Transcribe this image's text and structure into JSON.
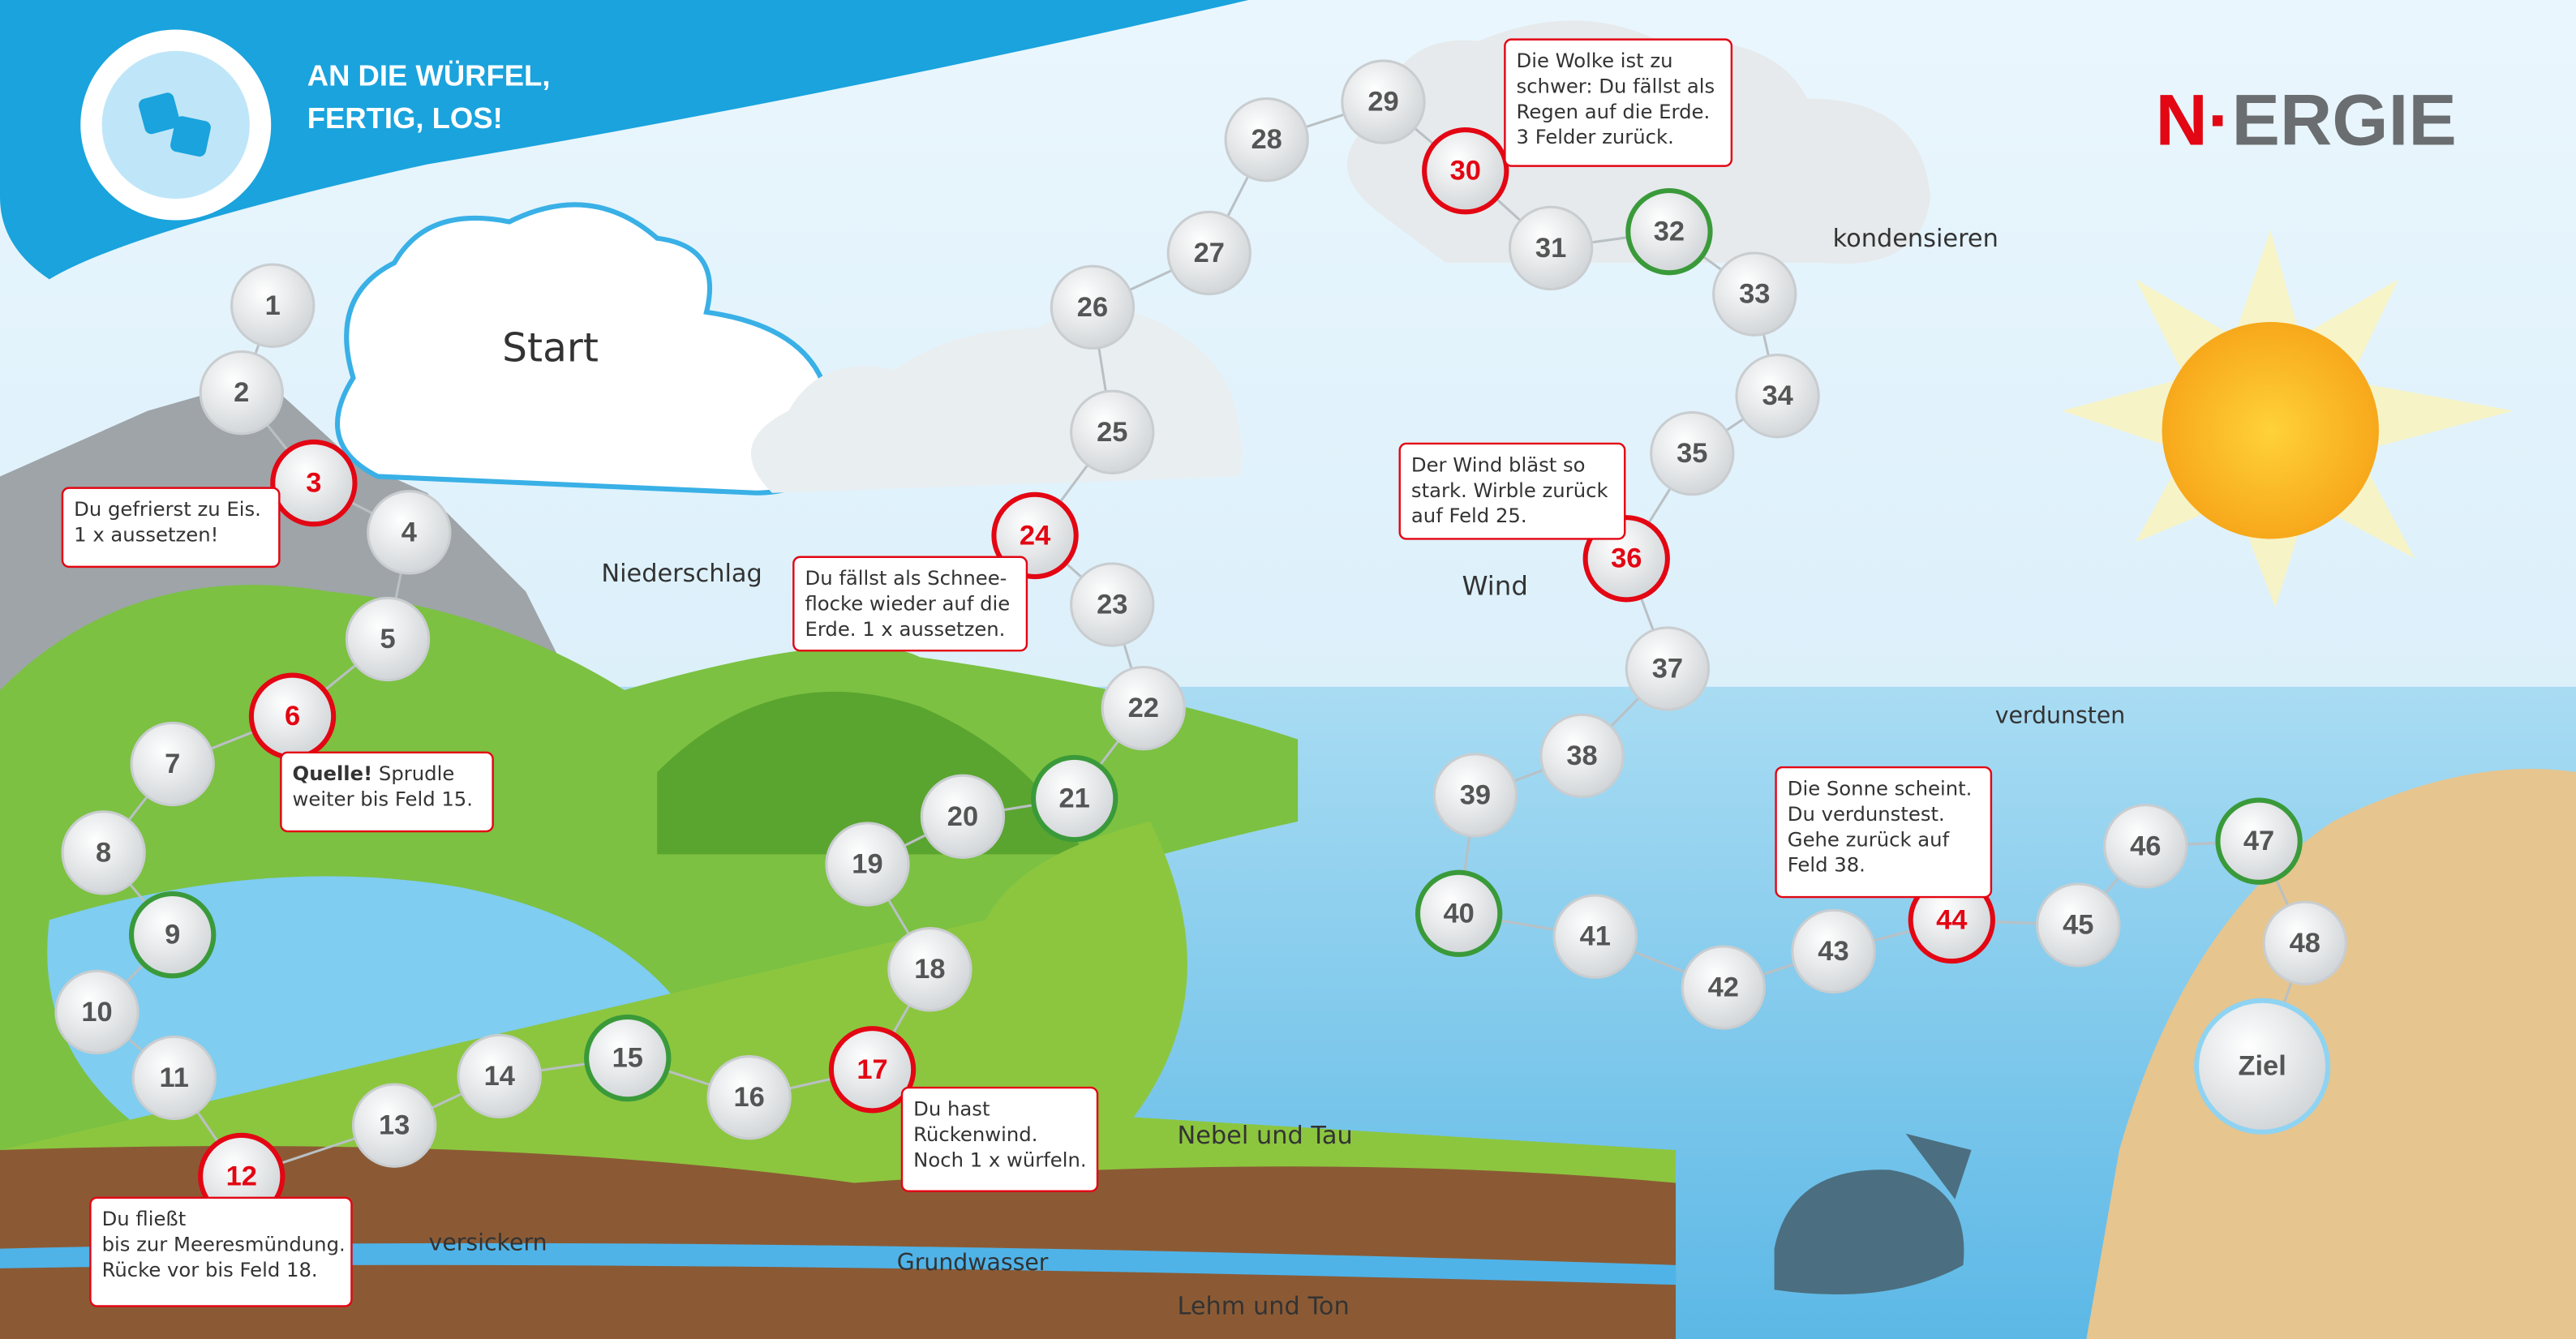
{
  "header": {
    "title_lines": [
      "AN DIE WÜRFEL,",
      "FERTIG, LOS!"
    ]
  },
  "logo": {
    "parts": [
      "N·",
      "ERGIE"
    ]
  },
  "fields": [
    {
      "number": 1
    },
    {
      "number": 2
    },
    {
      "number": 3,
      "color": "#e30613"
    },
    {
      "number": 4
    },
    {
      "number": 5
    },
    {
      "number": 6,
      "color": "#e30613"
    },
    {
      "number": 7
    },
    {
      "number": 8
    },
    {
      "number": 9,
      "color": "#3a9a3a"
    },
    {
      "number": 10
    },
    {
      "number": 11
    },
    {
      "number": 12,
      "color": "#e30613"
    },
    {
      "number": 13
    },
    {
      "number": 14
    },
    {
      "number": 15,
      "color": "#3a9a3a"
    },
    {
      "number": 16
    },
    {
      "number": 17,
      "color": "#e30613"
    },
    {
      "number": 18
    },
    {
      "number": 19
    },
    {
      "number": 20
    },
    {
      "number": 21,
      "color": "#3a9a3a"
    },
    {
      "number": 22
    },
    {
      "number": 23
    },
    {
      "number": 24,
      "color": "#e30613"
    },
    {
      "number": 25
    },
    {
      "number": 26
    },
    {
      "number": 27
    },
    {
      "number": 28
    },
    {
      "number": 29
    },
    {
      "number": 30,
      "color": "#e30613"
    },
    {
      "number": 31
    },
    {
      "number": 32,
      "color": "#3a9a3a"
    },
    {
      "number": 33
    },
    {
      "number": 34
    },
    {
      "number": 35
    },
    {
      "number": 36,
      "color": "#e30613"
    },
    {
      "number": 37
    },
    {
      "number": 38
    },
    {
      "number": 39
    },
    {
      "number": 40,
      "color": "#3a9a3a"
    },
    {
      "number": 41
    },
    {
      "number": 42
    },
    {
      "number": 43
    },
    {
      "number": 44,
      "color": "#e30613"
    },
    {
      "number": 45
    },
    {
      "number": 46
    },
    {
      "number": 47,
      "color": "#3a9a3a"
    },
    {
      "number": 48
    },
    {
      "number": "Ziel",
      "color": "#8fd3f2"
    }
  ],
  "callouts": [
    {
      "lines": [
        "Du gefrierst zu Eis.",
        "1 x aussetzen!"
      ]
    },
    {
      "bold": "Quelle!",
      "lines": [
        " Sprudle",
        "weiter bis Feld 15."
      ]
    },
    {
      "lines": [
        "Du fließt",
        "bis zur Meeresmündung.",
        "Rücke vor bis Feld 18."
      ]
    },
    {
      "lines": [
        "Du hast",
        "Rückenwind.",
        "Noch 1 x würfeln."
      ]
    },
    {
      "lines": [
        "Du fällst als Schnee-",
        "flocke wieder auf die",
        "Erde. 1 x aussetzen."
      ]
    },
    {
      "lines": [
        "Die Wolke ist zu",
        "schwer: Du fällst als",
        "Regen auf die Erde.",
        "3 Felder zurück."
      ]
    },
    {
      "lines": [
        "Der Wind bläst so",
        "stark. Wirble zurück",
        "auf Feld 25."
      ]
    },
    {
      "lines": [
        "Die Sonne scheint.",
        "Du verdunstest.",
        "Gehe zurück auf",
        "Feld 38."
      ]
    }
  ],
  "labels": [
    "Start",
    "Niederschlag",
    "Wind",
    "kondensieren",
    "verdunsten",
    "Nebel und Tau",
    "versickern",
    "Grundwasser",
    "Lehm und Ton"
  ]
}
